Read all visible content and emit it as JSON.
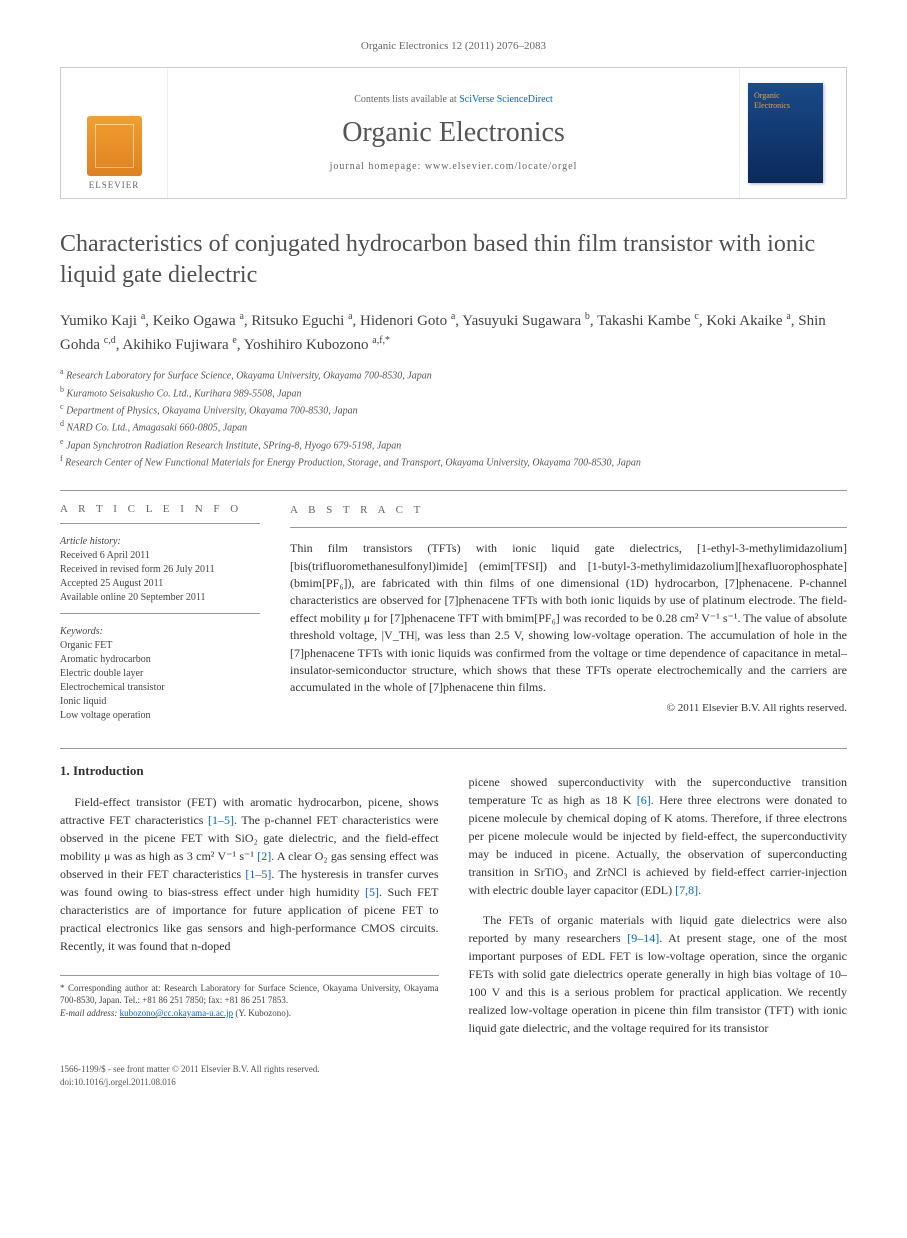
{
  "header": {
    "citation": "Organic Electronics 12 (2011) 2076–2083",
    "contents_prefix": "Contents lists available at ",
    "contents_link": "SciVerse ScienceDirect",
    "journal_title": "Organic Electronics",
    "homepage_prefix": "journal homepage: ",
    "homepage_url": "www.elsevier.com/locate/orgel",
    "publisher_name": "ELSEVIER",
    "cover_label": "Organic\nElectronics"
  },
  "article": {
    "title": "Characteristics of conjugated hydrocarbon based thin film transistor with ionic liquid gate dielectric",
    "authors_html": "Yumiko Kaji <sup>a</sup>, Keiko Ogawa <sup>a</sup>, Ritsuko Eguchi <sup>a</sup>, Hidenori Goto <sup>a</sup>, Yasuyuki Sugawara <sup>b</sup>, Takashi Kambe <sup>c</sup>, Koki Akaike <sup>a</sup>, Shin Gohda <sup>c,d</sup>, Akihiko Fujiwara <sup>e</sup>, Yoshihiro Kubozono <sup>a,f,*</sup>",
    "affiliations": [
      {
        "tag": "a",
        "text": "Research Laboratory for Surface Science, Okayama University, Okayama 700-8530, Japan"
      },
      {
        "tag": "b",
        "text": "Kuramoto Seisakusho Co. Ltd., Kurihara 989-5508, Japan"
      },
      {
        "tag": "c",
        "text": "Department of Physics, Okayama University, Okayama 700-8530, Japan"
      },
      {
        "tag": "d",
        "text": "NARD Co. Ltd., Amagasaki 660-0805, Japan"
      },
      {
        "tag": "e",
        "text": "Japan Synchrotron Radiation Research Institute, SPring-8, Hyogo 679-5198, Japan"
      },
      {
        "tag": "f",
        "text": "Research Center of New Functional Materials for Energy Production, Storage, and Transport, Okayama University, Okayama 700-8530, Japan"
      }
    ]
  },
  "info": {
    "heading": "A R T I C L E   I N F O",
    "history_label": "Article history:",
    "history": [
      "Received 6 April 2011",
      "Received in revised form 26 July 2011",
      "Accepted 25 August 2011",
      "Available online 20 September 2011"
    ],
    "keywords_label": "Keywords:",
    "keywords": [
      "Organic FET",
      "Aromatic hydrocarbon",
      "Electric double layer",
      "Electrochemical transistor",
      "Ionic liquid",
      "Low voltage operation"
    ]
  },
  "abstract": {
    "heading": "A B S T R A C T",
    "text": "Thin film transistors (TFTs) with ionic liquid gate dielectrics, [1-ethyl-3-methylimidazolium][bis(trifluoromethanesulfonyl)imide] (emim[TFSI]) and [1-butyl-3-methylimidazolium][hexafluorophosphate] (bmim[PF₆]), are fabricated with thin films of one dimensional (1D) hydrocarbon, [7]phenacene. P-channel characteristics are observed for [7]phenacene TFTs with both ionic liquids by use of platinum electrode. The field-effect mobility μ for [7]phenacene TFT with bmim[PF₆] was recorded to be 0.28 cm² V⁻¹ s⁻¹. The value of absolute threshold voltage, |V_TH|, was less than 2.5 V, showing low-voltage operation. The accumulation of hole in the [7]phenacene TFTs with ionic liquids was confirmed from the voltage or time dependence of capacitance in metal–insulator-semiconductor structure, which shows that these TFTs operate electrochemically and the carriers are accumulated in the whole of [7]phenacene thin films.",
    "copyright": "© 2011 Elsevier B.V. All rights reserved."
  },
  "body": {
    "section1_heading": "1. Introduction",
    "col1_p1": "Field-effect transistor (FET) with aromatic hydrocarbon, picene, shows attractive FET characteristics [1–5]. The p-channel FET characteristics were observed in the picene FET with SiO₂ gate dielectric, and the field-effect mobility μ was as high as 3 cm² V⁻¹ s⁻¹ [2]. A clear O₂ gas sensing effect was observed in their FET characteristics [1–5]. The hysteresis in transfer curves was found owing to bias-stress effect under high humidity [5]. Such FET characteristics are of importance for future application of picene FET to practical electronics like gas sensors and high-performance CMOS circuits. Recently, it was found that n-doped",
    "col2_p1": "picene showed superconductivity with the superconductive transition temperature Tc as high as 18 K [6]. Here three electrons were donated to picene molecule by chemical doping of K atoms. Therefore, if three electrons per picene molecule would be injected by field-effect, the superconductivity may be induced in picene. Actually, the observation of superconducting transition in SrTiO₃ and ZrNCl is achieved by field-effect carrier-injection with electric double layer capacitor (EDL) [7,8].",
    "col2_p2": "The FETs of organic materials with liquid gate dielectrics were also reported by many researchers [9–14]. At present stage, one of the most important purposes of EDL FET is low-voltage operation, since the organic FETs with solid gate dielectrics operate generally in high bias voltage of 10–100 V and this is a serious problem for practical application. We recently realized low-voltage operation in picene thin film transistor (TFT) with ionic liquid gate dielectric, and the voltage required for its transistor"
  },
  "footer": {
    "corresponding": "* Corresponding author at: Research Laboratory for Surface Science, Okayama University, Okayama 700-8530, Japan. Tel.: +81 86 251 7850; fax: +81 86 251 7853.",
    "email_label": "E-mail address: ",
    "email": "kubozono@cc.okayama-u.ac.jp",
    "email_suffix": " (Y. Kubozono).",
    "doi_line1": "1566-1199/$ - see front matter © 2011 Elsevier B.V. All rights reserved.",
    "doi_line2": "doi:10.1016/j.orgel.2011.08.016"
  },
  "style": {
    "link_color": "#0066cc",
    "text_color": "#333333",
    "heading_color": "#505050",
    "body_fontsize": 12,
    "title_fontsize": 24,
    "journal_title_fontsize": 28
  }
}
